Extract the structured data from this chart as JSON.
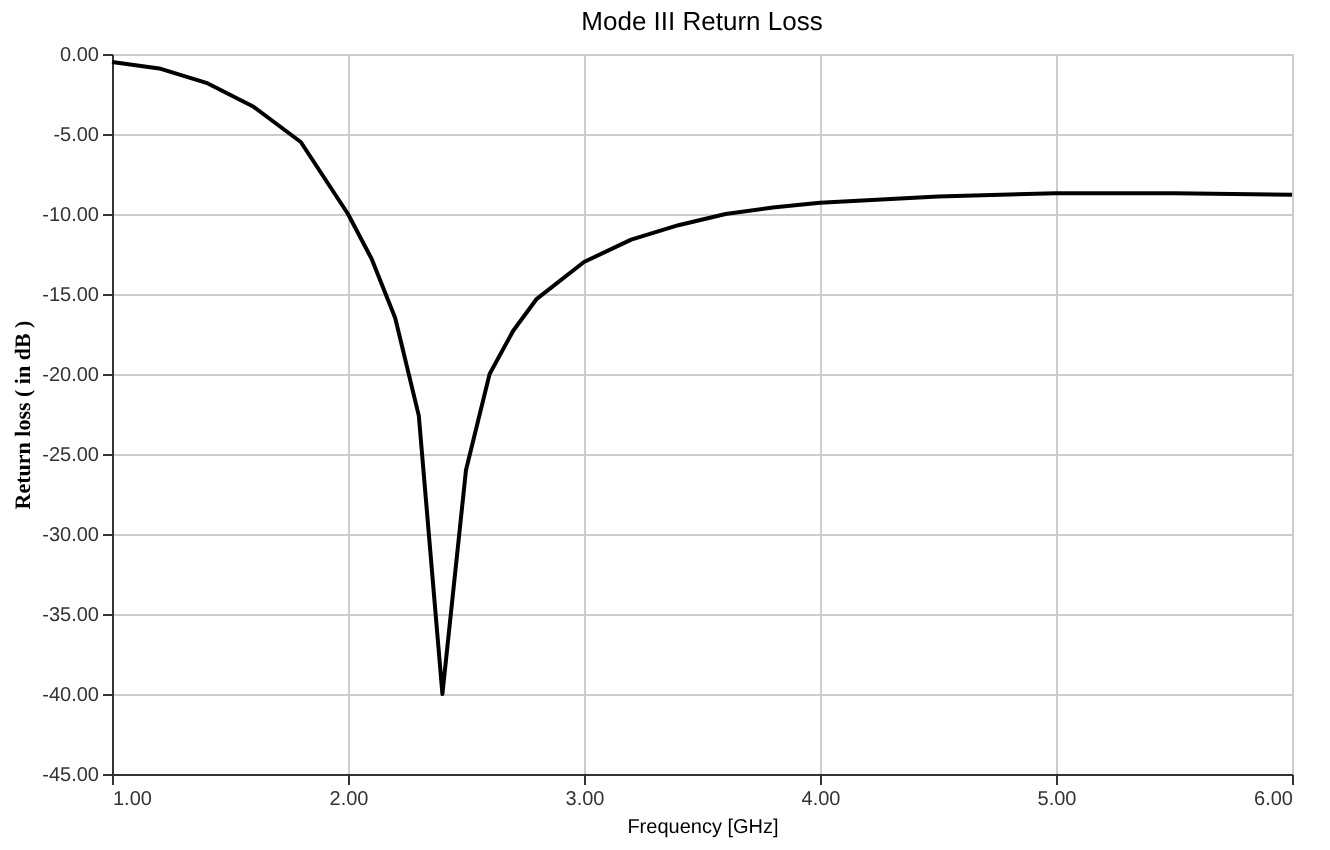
{
  "chart_data": {
    "type": "line",
    "title": "Mode III Return Loss",
    "xlabel": "Frequency [GHz]",
    "ylabel": "Return loss ( in dB )",
    "x": [
      1.0,
      1.2,
      1.4,
      1.6,
      1.8,
      2.0,
      2.1,
      2.2,
      2.3,
      2.4,
      2.5,
      2.6,
      2.7,
      2.8,
      3.0,
      3.2,
      3.4,
      3.6,
      3.8,
      4.0,
      4.5,
      5.0,
      5.5,
      6.0
    ],
    "series": [
      {
        "color": "#000000",
        "values": [
          -0.5,
          -0.9,
          -1.8,
          -3.3,
          -5.5,
          -10.0,
          -12.8,
          -16.5,
          -22.6,
          -40.0,
          -26.0,
          -20.0,
          -17.3,
          -15.3,
          -13.0,
          -11.6,
          -10.7,
          -10.0,
          -9.6,
          -9.3,
          -8.9,
          -8.7,
          -8.7,
          -8.8
        ]
      }
    ],
    "xlim": [
      1,
      6
    ],
    "ylim": [
      -45,
      0
    ],
    "xticks": [
      {
        "value": 1,
        "label": "1.00"
      },
      {
        "value": 2,
        "label": "2.00"
      },
      {
        "value": 3,
        "label": "3.00"
      },
      {
        "value": 4,
        "label": "4.00"
      },
      {
        "value": 5,
        "label": "5.00"
      },
      {
        "value": 6,
        "label": "6.00"
      }
    ],
    "yticks": [
      {
        "value": 0,
        "label": "0.00"
      },
      {
        "value": -5,
        "label": "-5.00"
      },
      {
        "value": -10,
        "label": "-10.00"
      },
      {
        "value": -15,
        "label": "-15.00"
      },
      {
        "value": -20,
        "label": "-20.00"
      },
      {
        "value": -25,
        "label": "-25.00"
      },
      {
        "value": -30,
        "label": "-30.00"
      },
      {
        "value": -35,
        "label": "-35.00"
      },
      {
        "value": -40,
        "label": "-40.00"
      },
      {
        "value": -45,
        "label": "-45.00"
      }
    ],
    "grid": true,
    "marker": "none",
    "line_style": "solid"
  }
}
